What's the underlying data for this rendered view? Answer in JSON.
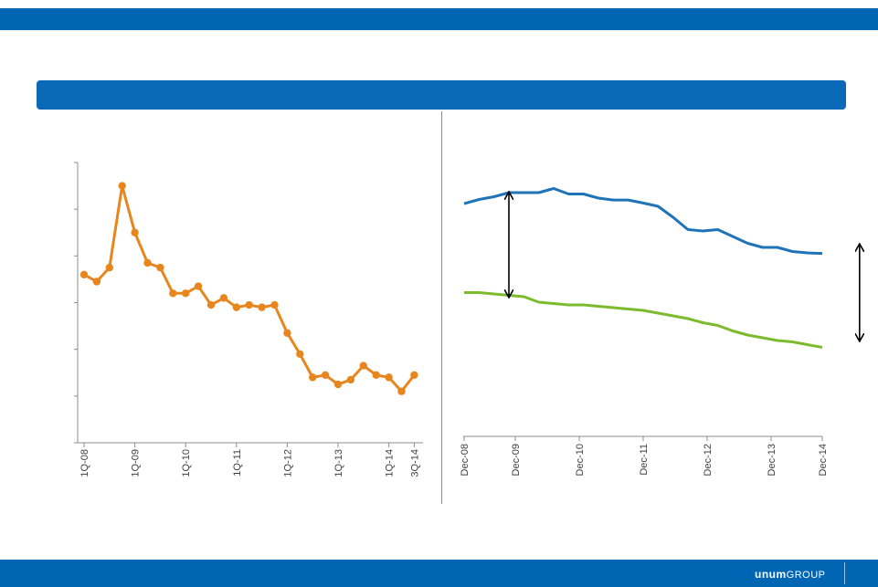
{
  "brand": {
    "logo_primary": "unum",
    "logo_secondary": "GROUP",
    "primary_color": "#0066b3"
  },
  "chart_data": [
    {
      "type": "line",
      "title": "",
      "xlabel": "",
      "ylabel": "",
      "color": "#e8861e",
      "marker": "circle",
      "ylim": [
        0,
        6
      ],
      "y_ticks": 6,
      "tick_labels": [
        "1Q-08",
        "1Q-09",
        "1Q-10",
        "1Q-11",
        "1Q-12",
        "1Q-13",
        "1Q-14",
        "3Q-14"
      ],
      "tick_index": [
        0,
        4,
        8,
        12,
        16,
        20,
        24,
        26
      ],
      "values": [
        3.6,
        3.45,
        3.75,
        5.5,
        4.5,
        3.85,
        3.75,
        3.2,
        3.2,
        3.35,
        2.95,
        3.1,
        2.9,
        2.95,
        2.9,
        2.95,
        2.35,
        1.9,
        1.4,
        1.45,
        1.25,
        1.35,
        1.65,
        1.45,
        1.4,
        1.1,
        1.45
      ]
    },
    {
      "type": "line",
      "title": "",
      "xlabel": "",
      "ylabel": "",
      "ylim": [
        0,
        100
      ],
      "tick_labels": [
        "Dec-08",
        "Dec-09",
        "Dec-10",
        "Dec-11",
        "Dec-12",
        "Dec-13",
        "Dec-14"
      ],
      "tick_index": [
        0,
        4,
        9,
        14,
        19,
        24,
        28
      ],
      "series": [
        {
          "name": "upper",
          "color": "#1f73b7",
          "values": [
            85,
            86.5,
            87.5,
            89,
            89,
            89,
            90.5,
            88.5,
            88.5,
            87,
            86.3,
            86.3,
            85.2,
            84,
            80,
            75.5,
            75,
            75.5,
            73,
            70.5,
            69,
            69,
            67.5,
            67,
            66.8
          ]
        },
        {
          "name": "lower",
          "color": "#7dbb2e",
          "values": [
            52.5,
            52.5,
            52,
            51.5,
            51,
            49,
            48.5,
            48,
            48,
            47.5,
            47,
            46.5,
            46,
            45,
            44,
            43,
            41.5,
            40.5,
            38.5,
            37,
            36,
            35,
            34.5,
            33.5,
            32.5
          ]
        }
      ],
      "annotations": [
        {
          "type": "double-arrow",
          "x": 3,
          "y_from": 51,
          "y_to": 89
        },
        {
          "type": "double-arrow",
          "x": 26.5,
          "y_from": 35,
          "y_to": 70
        }
      ]
    }
  ]
}
